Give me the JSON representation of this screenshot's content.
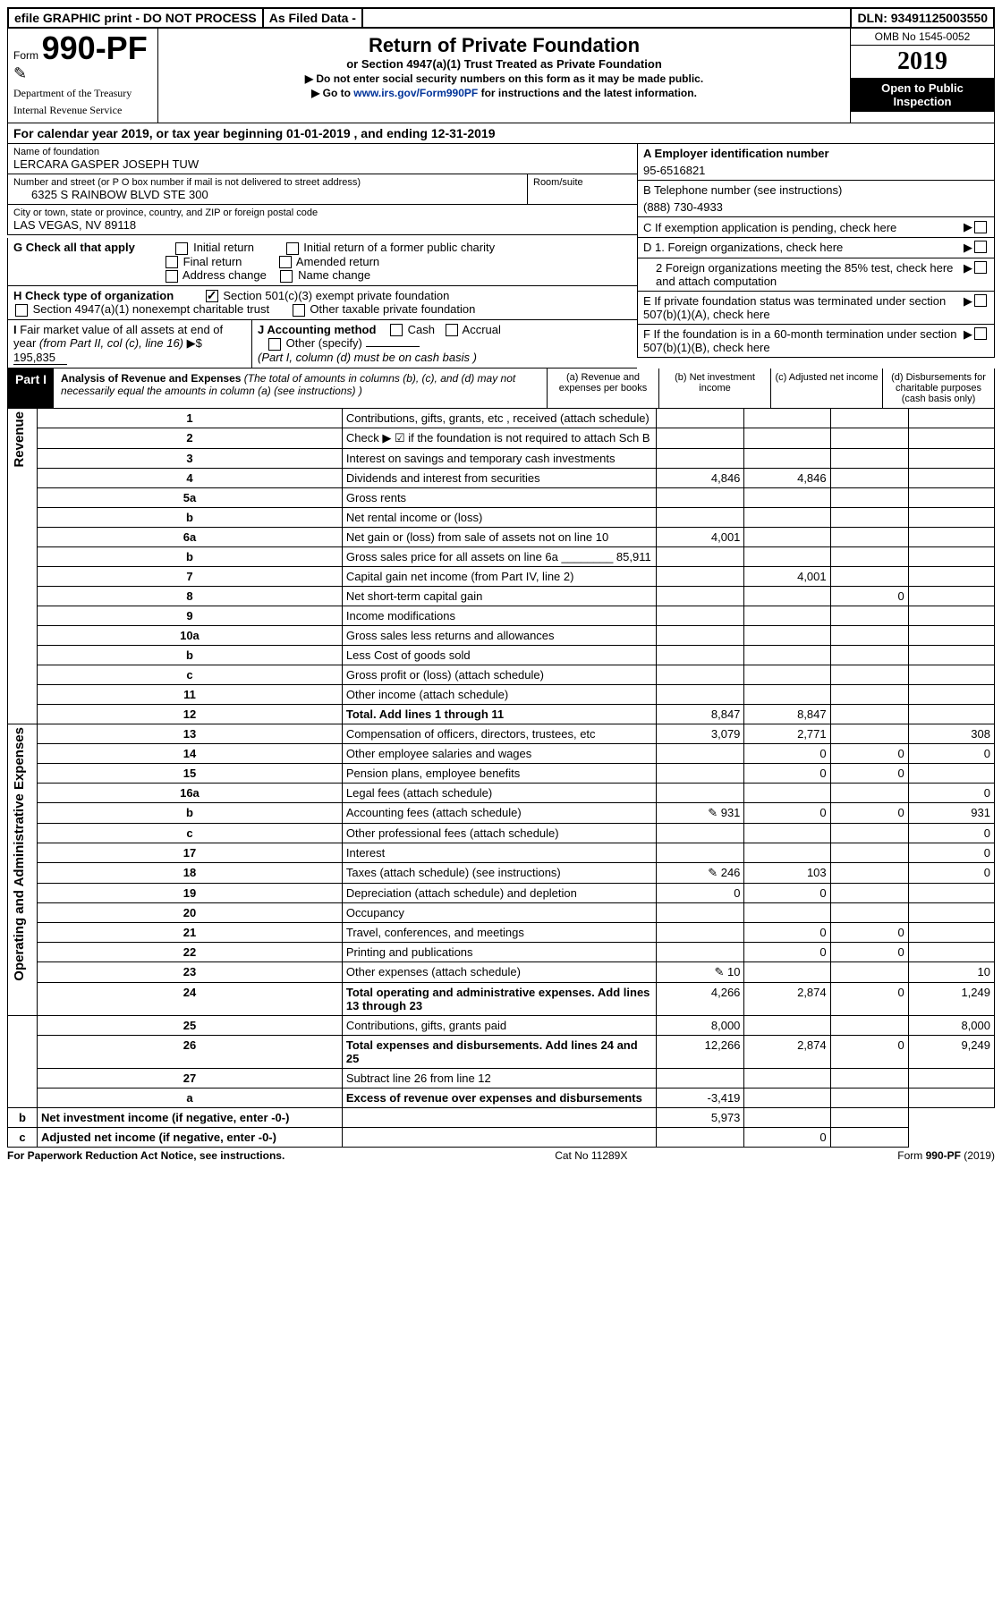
{
  "topbar": {
    "efile": "efile GRAPHIC print - DO NOT PROCESS",
    "asfiled": "As Filed Data -",
    "dln": "DLN: 93491125003550"
  },
  "header": {
    "form_prefix": "Form",
    "form_num": "990-PF",
    "dept1": "Department of the Treasury",
    "dept2": "Internal Revenue Service",
    "title": "Return of Private Foundation",
    "subtitle": "or Section 4947(a)(1) Trust Treated as Private Foundation",
    "note1": "▶ Do not enter social security numbers on this form as it may be made public.",
    "note2_pre": "▶ Go to ",
    "note2_link": "www.irs.gov/Form990PF",
    "note2_post": " for instructions and the latest information.",
    "omb": "OMB No 1545-0052",
    "year": "2019",
    "inspect": "Open to Public Inspection"
  },
  "calyear": {
    "pre": "For calendar year 2019, or tax year beginning ",
    "begin": "01-01-2019",
    "mid": " , and ending ",
    "end": "12-31-2019"
  },
  "ident": {
    "name_lbl": "Name of foundation",
    "name": "LERCARA GASPER JOSEPH TUW",
    "addr_lbl": "Number and street (or P O  box number if mail is not delivered to street address)",
    "addr": "6325 S RAINBOW BLVD STE 300",
    "room_lbl": "Room/suite",
    "city_lbl": "City or town, state or province, country, and ZIP or foreign postal code",
    "city": "LAS VEGAS, NV  89118",
    "a_lbl": "A Employer identification number",
    "a_val": "95-6516821",
    "b_lbl": "B Telephone number (see instructions)",
    "b_val": "(888) 730-4933",
    "c_lbl": "C If exemption application is pending, check here"
  },
  "boxG": {
    "lbl": "G Check all that apply",
    "o1": "Initial return",
    "o2": "Initial return of a former public charity",
    "o3": "Final return",
    "o4": "Amended return",
    "o5": "Address change",
    "o6": "Name change"
  },
  "boxH": {
    "lbl": "H Check type of organization",
    "o1": "Section 501(c)(3) exempt private foundation",
    "o2": "Section 4947(a)(1) nonexempt charitable trust",
    "o3": "Other taxable private foundation"
  },
  "boxI": {
    "lbl": "I Fair market value of all assets at end of year (from Part II, col (c), line 16) ▶$ ",
    "val": "195,835"
  },
  "boxJ": {
    "lbl": "J Accounting method",
    "o1": "Cash",
    "o2": "Accrual",
    "o3": "Other (specify)",
    "note": "(Part I, column (d) must be on cash basis )"
  },
  "boxD": {
    "d1": "D 1. Foreign organizations, check here",
    "d2": "2 Foreign organizations meeting the 85% test, check here and attach computation",
    "e": "E If private foundation status was terminated under section 507(b)(1)(A), check here",
    "f": "F If the foundation is in a 60-month termination under section 507(b)(1)(B), check here"
  },
  "part1": {
    "label": "Part I",
    "desc1": "Analysis of Revenue and Expenses",
    "desc2": " (The total of amounts in columns (b), (c), and (d) may not necessarily equal the amounts in column (a) (see instructions) )",
    "col_a": "(a) Revenue and expenses per books",
    "col_b": "(b) Net investment income",
    "col_c": "(c) Adjusted net income",
    "col_d": "(d) Disbursements for charitable purposes (cash basis only)"
  },
  "sections": {
    "revenue": "Revenue",
    "opadmin": "Operating and Administrative Expenses"
  },
  "rows": [
    {
      "n": "1",
      "lbl": "Contributions, gifts, grants, etc , received (attach schedule)",
      "a": "",
      "b": "",
      "c": "",
      "d": ""
    },
    {
      "n": "2",
      "lbl": "Check ▶ ☑ if the foundation is not required to attach Sch B",
      "a": "",
      "b": "",
      "c": "",
      "d": ""
    },
    {
      "n": "3",
      "lbl": "Interest on savings and temporary cash investments",
      "a": "",
      "b": "",
      "c": "",
      "d": ""
    },
    {
      "n": "4",
      "lbl": "Dividends and interest from securities",
      "a": "4,846",
      "b": "4,846",
      "c": "",
      "d": ""
    },
    {
      "n": "5a",
      "lbl": "Gross rents",
      "a": "",
      "b": "",
      "c": "",
      "d": ""
    },
    {
      "n": "b",
      "lbl": "Net rental income or (loss)",
      "a": "",
      "b": "",
      "c": "",
      "d": ""
    },
    {
      "n": "6a",
      "lbl": "Net gain or (loss) from sale of assets not on line 10",
      "a": "4,001",
      "b": "",
      "c": "",
      "d": ""
    },
    {
      "n": "b",
      "lbl": "Gross sales price for all assets on line 6a ________ 85,911",
      "a": "",
      "b": "",
      "c": "",
      "d": ""
    },
    {
      "n": "7",
      "lbl": "Capital gain net income (from Part IV, line 2)",
      "a": "",
      "b": "4,001",
      "c": "",
      "d": ""
    },
    {
      "n": "8",
      "lbl": "Net short-term capital gain",
      "a": "",
      "b": "",
      "c": "0",
      "d": ""
    },
    {
      "n": "9",
      "lbl": "Income modifications",
      "a": "",
      "b": "",
      "c": "",
      "d": ""
    },
    {
      "n": "10a",
      "lbl": "Gross sales less returns and allowances",
      "a": "",
      "b": "",
      "c": "",
      "d": ""
    },
    {
      "n": "b",
      "lbl": "Less  Cost of goods sold",
      "a": "",
      "b": "",
      "c": "",
      "d": ""
    },
    {
      "n": "c",
      "lbl": "Gross profit or (loss) (attach schedule)",
      "a": "",
      "b": "",
      "c": "",
      "d": ""
    },
    {
      "n": "11",
      "lbl": "Other income (attach schedule)",
      "a": "",
      "b": "",
      "c": "",
      "d": ""
    },
    {
      "n": "12",
      "lbl": "Total. Add lines 1 through 11",
      "bold": true,
      "a": "8,847",
      "b": "8,847",
      "c": "",
      "d": ""
    },
    {
      "n": "13",
      "lbl": "Compensation of officers, directors, trustees, etc",
      "a": "3,079",
      "b": "2,771",
      "c": "",
      "d": "308"
    },
    {
      "n": "14",
      "lbl": "Other employee salaries and wages",
      "a": "",
      "b": "0",
      "c": "0",
      "d": "0"
    },
    {
      "n": "15",
      "lbl": "Pension plans, employee benefits",
      "a": "",
      "b": "0",
      "c": "0",
      "d": ""
    },
    {
      "n": "16a",
      "lbl": "Legal fees (attach schedule)",
      "a": "",
      "b": "",
      "c": "",
      "d": "0"
    },
    {
      "n": "b",
      "lbl": "Accounting fees (attach schedule)",
      "icon": true,
      "a": "931",
      "b": "0",
      "c": "0",
      "d": "931"
    },
    {
      "n": "c",
      "lbl": "Other professional fees (attach schedule)",
      "a": "",
      "b": "",
      "c": "",
      "d": "0"
    },
    {
      "n": "17",
      "lbl": "Interest",
      "a": "",
      "b": "",
      "c": "",
      "d": "0"
    },
    {
      "n": "18",
      "lbl": "Taxes (attach schedule) (see instructions)",
      "icon": true,
      "a": "246",
      "b": "103",
      "c": "",
      "d": "0"
    },
    {
      "n": "19",
      "lbl": "Depreciation (attach schedule) and depletion",
      "a": "0",
      "b": "0",
      "c": "",
      "d": ""
    },
    {
      "n": "20",
      "lbl": "Occupancy",
      "a": "",
      "b": "",
      "c": "",
      "d": ""
    },
    {
      "n": "21",
      "lbl": "Travel, conferences, and meetings",
      "a": "",
      "b": "0",
      "c": "0",
      "d": ""
    },
    {
      "n": "22",
      "lbl": "Printing and publications",
      "a": "",
      "b": "0",
      "c": "0",
      "d": ""
    },
    {
      "n": "23",
      "lbl": "Other expenses (attach schedule)",
      "icon": true,
      "a": "10",
      "b": "",
      "c": "",
      "d": "10"
    },
    {
      "n": "24",
      "lbl": "Total operating and administrative expenses. Add lines 13 through 23",
      "bold": true,
      "a": "4,266",
      "b": "2,874",
      "c": "0",
      "d": "1,249"
    },
    {
      "n": "25",
      "lbl": "Contributions, gifts, grants paid",
      "a": "8,000",
      "b": "",
      "c": "",
      "d": "8,000"
    },
    {
      "n": "26",
      "lbl": "Total expenses and disbursements. Add lines 24 and 25",
      "bold": true,
      "a": "12,266",
      "b": "2,874",
      "c": "0",
      "d": "9,249"
    },
    {
      "n": "27",
      "lbl": "Subtract line 26 from line 12",
      "a": "",
      "b": "",
      "c": "",
      "d": ""
    },
    {
      "n": "a",
      "lbl": "Excess of revenue over expenses and disbursements",
      "bold": true,
      "a": "-3,419",
      "b": "",
      "c": "",
      "d": ""
    },
    {
      "n": "b",
      "lbl": "Net investment income (if negative, enter -0-)",
      "bold": true,
      "a": "",
      "b": "5,973",
      "c": "",
      "d": ""
    },
    {
      "n": "c",
      "lbl": "Adjusted net income (if negative, enter -0-)",
      "bold": true,
      "a": "",
      "b": "",
      "c": "0",
      "d": ""
    }
  ],
  "footer": {
    "left": "For Paperwork Reduction Act Notice, see instructions.",
    "mid": "Cat No 11289X",
    "right": "Form 990-PF (2019)"
  }
}
